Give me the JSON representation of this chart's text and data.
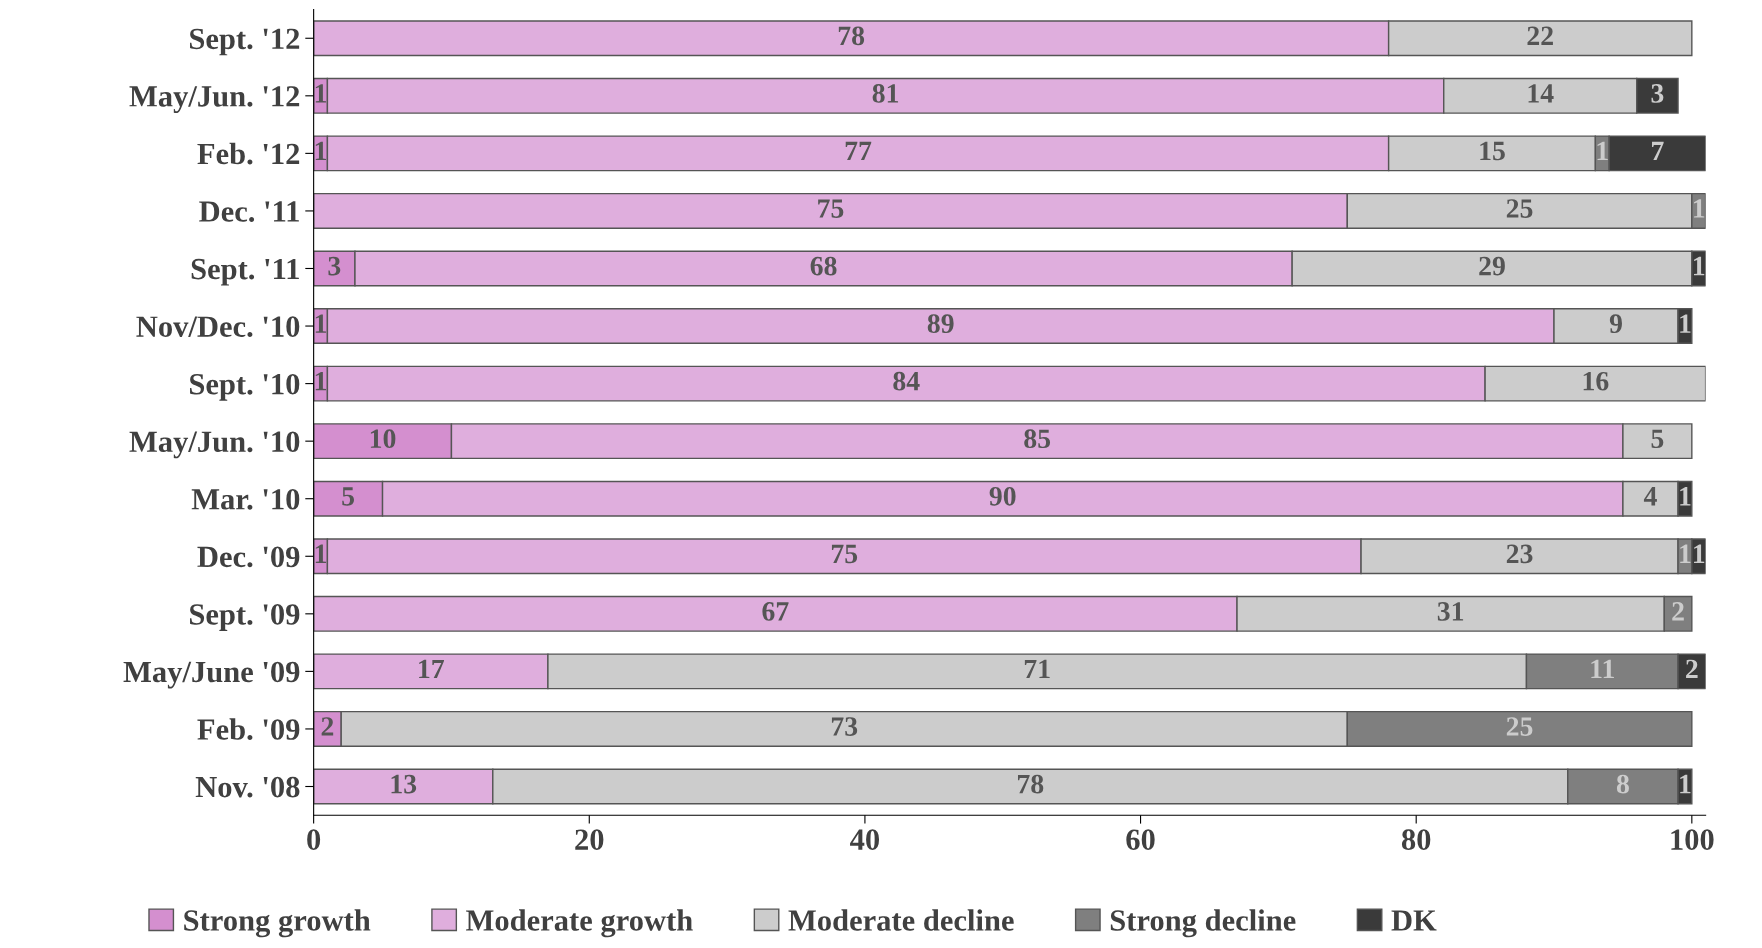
{
  "chart_data": {
    "type": "bar",
    "orientation": "horizontal",
    "stacked": true,
    "categories": [
      "Sept. '12",
      "May/Jun. '12",
      "Feb. '12",
      "Dec. '11",
      "Sept. '11",
      "Nov/Dec. '10",
      "Sept. '10",
      "May/Jun. '10",
      "Mar. '10",
      "Dec. '09",
      "Sept. '09",
      "May/June '09",
      "Feb. '09",
      "Nov. '08"
    ],
    "series": [
      {
        "name": "Strong growth",
        "color": "#d48fcf",
        "values": [
          null,
          1,
          1,
          null,
          3,
          1,
          1,
          10,
          5,
          1,
          null,
          null,
          2,
          null
        ]
      },
      {
        "name": "Moderate growth",
        "color": "#dfaedd",
        "values": [
          78,
          81,
          77,
          75,
          68,
          89,
          84,
          85,
          90,
          75,
          67,
          17,
          null,
          13
        ]
      },
      {
        "name": "Moderate decline",
        "color": "#cccccc",
        "values": [
          22,
          14,
          15,
          25,
          29,
          9,
          16,
          5,
          4,
          23,
          31,
          71,
          73,
          78
        ]
      },
      {
        "name": "Strong decline",
        "color": "#7f7f7f",
        "values": [
          null,
          null,
          1,
          1,
          null,
          null,
          null,
          null,
          null,
          1,
          2,
          11,
          25,
          8
        ]
      },
      {
        "name": "DK",
        "color": "#3a3a3a",
        "values": [
          null,
          3,
          7,
          null,
          1,
          1,
          null,
          null,
          1,
          1,
          null,
          2,
          null,
          1
        ]
      }
    ],
    "xlim": [
      0,
      101
    ],
    "xticks": [
      0,
      20,
      40,
      60,
      80,
      100
    ],
    "data_labels": true,
    "grid": false,
    "legend": "bottom"
  }
}
